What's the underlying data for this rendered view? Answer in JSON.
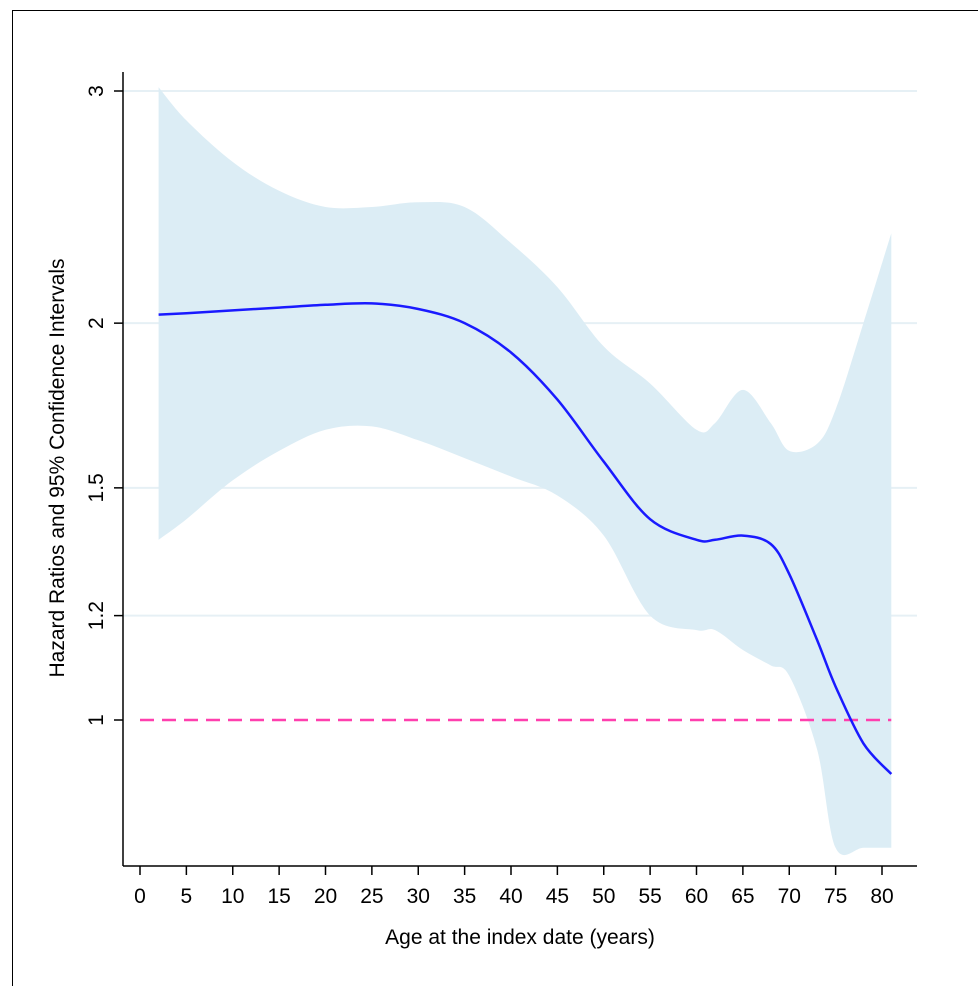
{
  "chart_data": {
    "type": "line",
    "title": "",
    "xlabel": "Age at the index date (years)",
    "ylabel": "Hazard Ratios and 95% Confidence Intervals",
    "xlim": [
      0,
      81
    ],
    "ylim": [
      0.75,
      3.1
    ],
    "y_scale": "log",
    "grid": true,
    "x_ticks": [
      0,
      5,
      10,
      15,
      20,
      25,
      30,
      35,
      40,
      45,
      50,
      55,
      60,
      65,
      70,
      75,
      80
    ],
    "y_ticks": [
      1,
      1.2,
      1.5,
      2,
      3
    ],
    "y_tick_labels": [
      "1",
      "1.2",
      "1.5",
      "2",
      "3"
    ],
    "reference_line": {
      "y": 1,
      "style": "dashed",
      "color": "#ff3fae"
    },
    "colors": {
      "estimate": "#1a1aff",
      "band": "#dcedf5",
      "grid": "#e6f0f5"
    },
    "series": [
      {
        "x": [
          2,
          5,
          10,
          15,
          20,
          25,
          30,
          35,
          40,
          45,
          50,
          55,
          60,
          62,
          65,
          68,
          70,
          73,
          75,
          78,
          81
        ],
        "y": [
          2.03,
          2.035,
          2.045,
          2.055,
          2.065,
          2.07,
          2.05,
          2.0,
          1.9,
          1.75,
          1.57,
          1.42,
          1.37,
          1.37,
          1.38,
          1.36,
          1.29,
          1.15,
          1.06,
          0.96,
          0.91
        ],
        "lower": [
          1.37,
          1.42,
          1.52,
          1.6,
          1.66,
          1.67,
          1.63,
          1.58,
          1.53,
          1.48,
          1.38,
          1.2,
          1.17,
          1.17,
          1.13,
          1.1,
          1.08,
          0.95,
          0.8,
          0.8,
          0.8
        ],
        "upper": [
          3.02,
          2.85,
          2.65,
          2.52,
          2.45,
          2.45,
          2.47,
          2.45,
          2.3,
          2.13,
          1.92,
          1.8,
          1.66,
          1.68,
          1.78,
          1.68,
          1.6,
          1.62,
          1.72,
          2.0,
          2.34
        ]
      }
    ]
  }
}
